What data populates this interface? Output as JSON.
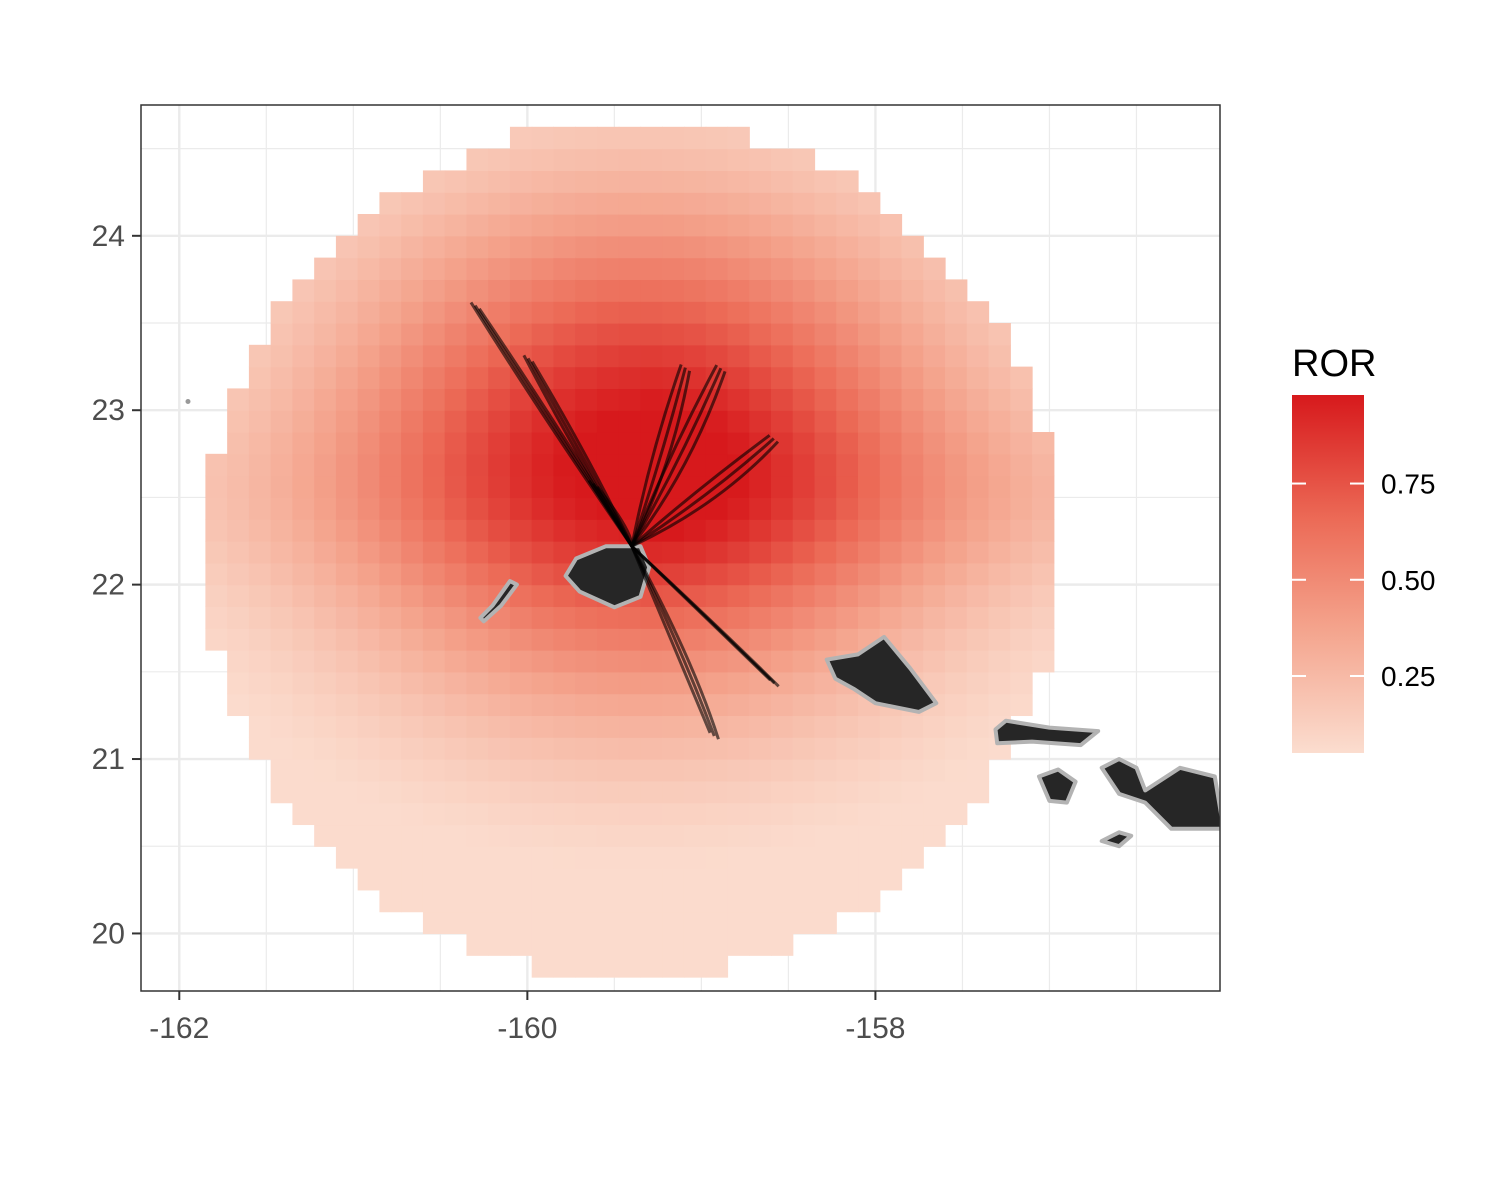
{
  "chart_data": {
    "type": "heatmap",
    "description_kind": "raster map of ROR values with animal tracks and island outlines",
    "x_ticks": [
      "-162",
      "-160",
      "-158"
    ],
    "y_ticks": [
      "24",
      "23",
      "22",
      "21",
      "20"
    ],
    "x_tick_values": [
      -162,
      -160,
      -158
    ],
    "y_tick_values": [
      24,
      23,
      22,
      21,
      20
    ],
    "xlim": [
      -162.22,
      -156.02
    ],
    "ylim": [
      19.67,
      24.75
    ],
    "grid": true,
    "legend": {
      "title": "ROR",
      "placement": "right",
      "labels": [
        "0.75",
        "0.50",
        "0.25"
      ],
      "label_values": [
        0.75,
        0.5,
        0.25
      ],
      "range": [
        0.05,
        0.98
      ]
    },
    "field": {
      "center_lon": -159.4,
      "center_lat": 22.2,
      "radius_deg": 2.45,
      "cell_deg": 0.125,
      "peak": {
        "lon": -159.35,
        "lat": 22.75,
        "value": 0.97
      },
      "min_value": 0.06
    },
    "tag_location": {
      "lon": -159.4,
      "lat": 22.22
    },
    "track_endpoints": [
      {
        "lon": -160.3,
        "lat": 23.6
      },
      {
        "lon": -160.0,
        "lat": 23.3
      },
      {
        "lon": -159.1,
        "lat": 23.25
      },
      {
        "lon": -158.9,
        "lat": 23.25
      },
      {
        "lon": -158.6,
        "lat": 22.85
      },
      {
        "lon": -158.6,
        "lat": 21.45
      },
      {
        "lon": -158.95,
        "lat": 21.15
      },
      {
        "lon": -159.65,
        "lat": 22.6
      }
    ],
    "islands": [
      {
        "name": "Kauai",
        "lon": -159.52,
        "lat": 22.07
      },
      {
        "name": "Niihau",
        "lon": -160.15,
        "lat": 21.9
      },
      {
        "name": "Oahu",
        "lon": -157.98,
        "lat": 21.47
      },
      {
        "name": "Molokai",
        "lon": -157.0,
        "lat": 21.13
      },
      {
        "name": "Lanai",
        "lon": -156.93,
        "lat": 20.83
      },
      {
        "name": "Maui",
        "lon": -156.3,
        "lat": 20.85
      },
      {
        "name": "Kahoolawe",
        "lon": -156.6,
        "lat": 20.55
      }
    ],
    "colors": {
      "high": "#d7191c",
      "low": "#fbddcf",
      "island_fill": "#262626",
      "island_outline": "#b3b3b3",
      "track": "#000000"
    }
  }
}
